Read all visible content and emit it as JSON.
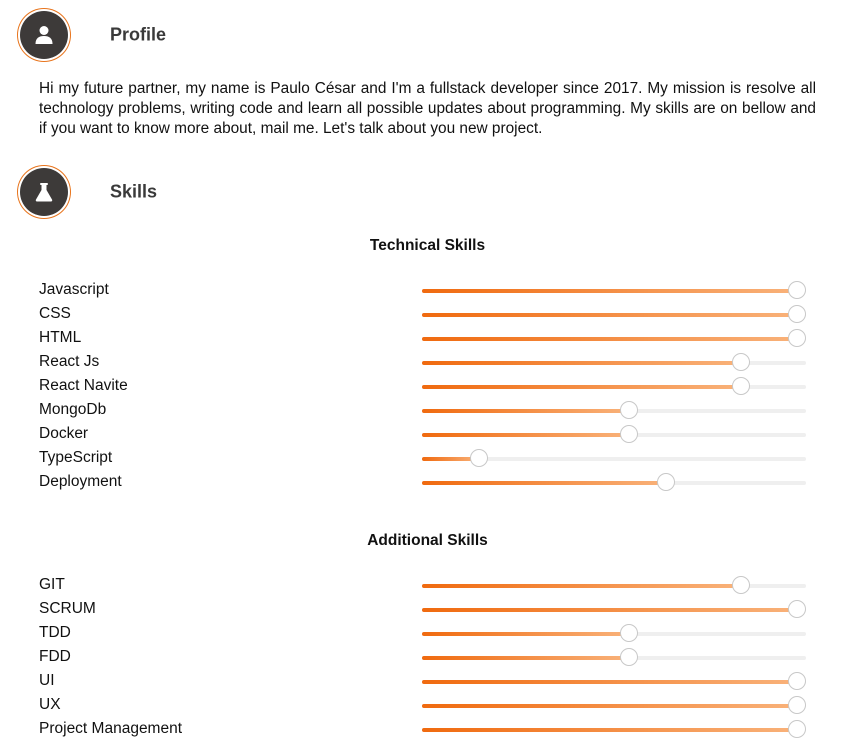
{
  "profile": {
    "icon": "user-icon",
    "title": "Profile",
    "bio": "Hi my future partner, my name is Paulo César and I'm a fullstack developer since 2017. My mission is resolve all technology problems, writing code and learn all possible updates about programming. My skills are on bellow and if you want to know more about, mail me. Let's talk about you new project."
  },
  "skills": {
    "icon": "flask-icon",
    "title": "Skills",
    "technical": {
      "title": "Technical Skills",
      "items": [
        {
          "label": "Javascript",
          "level": 1.0
        },
        {
          "label": "CSS",
          "level": 1.0
        },
        {
          "label": "HTML",
          "level": 1.0
        },
        {
          "label": "React Js",
          "level": 0.85
        },
        {
          "label": "React Navite",
          "level": 0.85
        },
        {
          "label": "MongoDb",
          "level": 0.55
        },
        {
          "label": "Docker",
          "level": 0.55
        },
        {
          "label": "TypeScript",
          "level": 0.15
        },
        {
          "label": "Deployment",
          "level": 0.65
        }
      ]
    },
    "additional": {
      "title": "Additional Skills",
      "items": [
        {
          "label": "GIT",
          "level": 0.85
        },
        {
          "label": "SCRUM",
          "level": 1.0
        },
        {
          "label": "TDD",
          "level": 0.55
        },
        {
          "label": "FDD",
          "level": 0.55
        },
        {
          "label": "UI",
          "level": 1.0
        },
        {
          "label": "UX",
          "level": 1.0
        },
        {
          "label": "Project Management",
          "level": 1.0
        }
      ]
    }
  },
  "colors": {
    "accent": "#f06a0f",
    "accent_light": "#f9b27a",
    "badge_bg": "#3d3a39",
    "track": "#efefef"
  }
}
